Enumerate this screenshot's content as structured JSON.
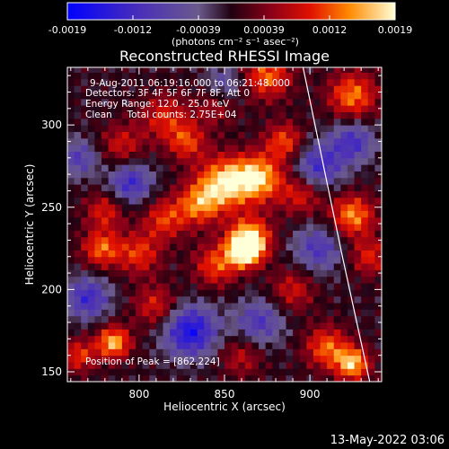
{
  "chart_data": {
    "type": "heatmap",
    "title": "Reconstructed RHESSI Image",
    "xlabel": "Heliocentric X (arcsec)",
    "ylabel": "Heliocentric Y (arcsec)",
    "xlim": [
      758,
      942
    ],
    "ylim": [
      144,
      335
    ],
    "x_ticks": [
      800,
      850,
      900
    ],
    "y_ticks": [
      150,
      200,
      250,
      300
    ],
    "colorbar": {
      "min": -0.0019,
      "max": 0.0019,
      "ticks": [
        "-0.0019",
        "-0.0012",
        "-0.00039",
        "0.00039",
        "0.0012",
        "0.0019"
      ],
      "unit_label": "(photons cm⁻² s⁻¹ asec⁻²)"
    },
    "annotations": [
      "9-Aug-2011 06:19:16.000 to 06:21:48.000",
      "Detectors: 3F 4F 5F 6F 7F 8F, Att 0",
      "Energy Range: 12.0 - 25.0 keV",
      "Clean     Total counts: 2.75E+04"
    ],
    "peak_label": "Position of Peak = [862,224]",
    "peak_position": [
      862,
      224
    ],
    "timestamp": "13-May-2022 03:06",
    "blobs": [
      {
        "x": 875,
        "y": 330,
        "amp": 0.0012,
        "r": 10
      },
      {
        "x": 925,
        "y": 318,
        "amp": 0.0013,
        "r": 10
      },
      {
        "x": 845,
        "y": 312,
        "amp": 0.0006,
        "r": 9
      },
      {
        "x": 815,
        "y": 305,
        "amp": 0.0009,
        "r": 10
      },
      {
        "x": 790,
        "y": 288,
        "amp": 0.0008,
        "r": 9
      },
      {
        "x": 828,
        "y": 290,
        "amp": 0.001,
        "r": 8
      },
      {
        "x": 850,
        "y": 265,
        "amp": 0.0017,
        "r": 11
      },
      {
        "x": 870,
        "y": 268,
        "amp": 0.0016,
        "r": 10
      },
      {
        "x": 895,
        "y": 258,
        "amp": 0.0009,
        "r": 9
      },
      {
        "x": 835,
        "y": 252,
        "amp": 0.0012,
        "r": 9
      },
      {
        "x": 815,
        "y": 243,
        "amp": 0.001,
        "r": 9
      },
      {
        "x": 865,
        "y": 232,
        "amp": 0.0015,
        "r": 9
      },
      {
        "x": 862,
        "y": 224,
        "amp": 0.0019,
        "r": 7
      },
      {
        "x": 845,
        "y": 215,
        "amp": 0.0011,
        "r": 9
      },
      {
        "x": 778,
        "y": 225,
        "amp": 0.0012,
        "r": 8
      },
      {
        "x": 780,
        "y": 248,
        "amp": 0.0009,
        "r": 8
      },
      {
        "x": 800,
        "y": 222,
        "amp": 0.001,
        "r": 9
      },
      {
        "x": 810,
        "y": 190,
        "amp": 0.0009,
        "r": 9
      },
      {
        "x": 890,
        "y": 200,
        "amp": 0.0008,
        "r": 9
      },
      {
        "x": 925,
        "y": 245,
        "amp": 0.0014,
        "r": 9
      },
      {
        "x": 935,
        "y": 220,
        "amp": 0.0009,
        "r": 8
      },
      {
        "x": 785,
        "y": 168,
        "amp": 0.0016,
        "r": 7
      },
      {
        "x": 765,
        "y": 160,
        "amp": 0.001,
        "r": 7
      },
      {
        "x": 910,
        "y": 165,
        "amp": 0.0012,
        "r": 9
      },
      {
        "x": 925,
        "y": 155,
        "amp": 0.0016,
        "r": 7
      },
      {
        "x": 860,
        "y": 160,
        "amp": 0.0007,
        "r": 9
      },
      {
        "x": 885,
        "y": 290,
        "amp": 0.0011,
        "r": 8
      },
      {
        "x": 905,
        "y": 275,
        "amp": -0.0012,
        "r": 10
      },
      {
        "x": 795,
        "y": 265,
        "amp": -0.0012,
        "r": 9
      },
      {
        "x": 830,
        "y": 175,
        "amp": -0.0016,
        "r": 11
      },
      {
        "x": 870,
        "y": 180,
        "amp": -0.001,
        "r": 10
      },
      {
        "x": 770,
        "y": 195,
        "amp": -0.0012,
        "r": 9
      },
      {
        "x": 905,
        "y": 225,
        "amp": -0.001,
        "r": 10
      },
      {
        "x": 925,
        "y": 290,
        "amp": -0.0011,
        "r": 9
      },
      {
        "x": 850,
        "y": 325,
        "amp": -0.0008,
        "r": 8
      },
      {
        "x": 765,
        "y": 280,
        "amp": -0.0009,
        "r": 8
      }
    ],
    "limb_curve": [
      [
        896,
        335
      ],
      [
        903,
        300
      ],
      [
        911,
        260
      ],
      [
        919,
        220
      ],
      [
        927,
        182
      ],
      [
        935,
        144
      ]
    ]
  }
}
